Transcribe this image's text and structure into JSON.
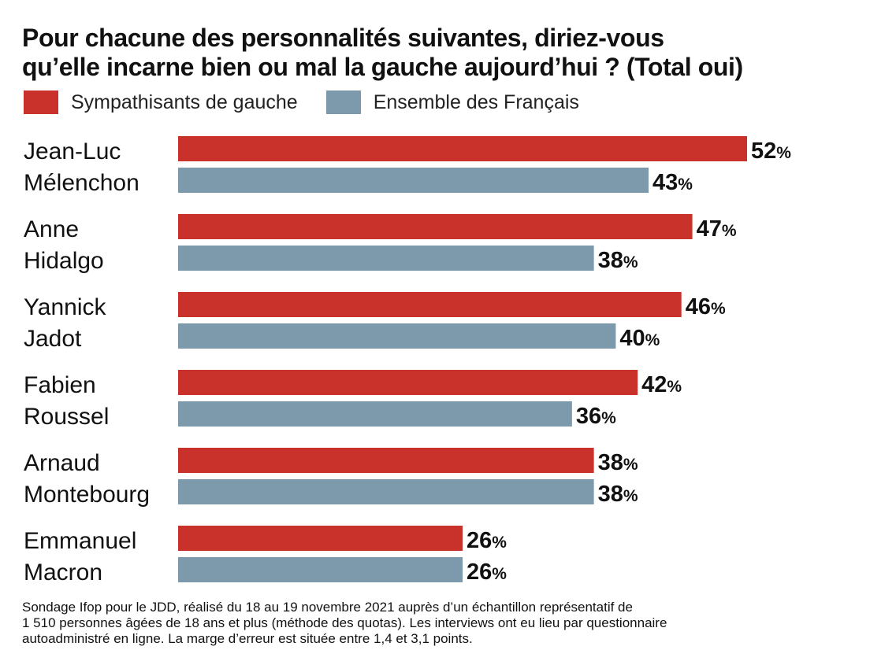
{
  "chart_data": {
    "type": "bar",
    "orientation": "horizontal",
    "title_lines": [
      "Pour chacune des personnalités suivantes, diriez-vous",
      "qu’elle incarne bien ou mal la gauche aujourd’hui ? (Total oui)"
    ],
    "categories": [
      [
        "Jean-Luc",
        "Mélenchon"
      ],
      [
        "Anne",
        "Hidalgo"
      ],
      [
        "Yannick",
        "Jadot"
      ],
      [
        "Fabien",
        "Roussel"
      ],
      [
        "Arnaud",
        "Montebourg"
      ],
      [
        "Emmanuel",
        "Macron"
      ]
    ],
    "series": [
      {
        "name": "Sympathisants de gauche",
        "color": "#c8322b",
        "values": [
          52,
          47,
          46,
          42,
          38,
          26
        ]
      },
      {
        "name": "Ensemble des Français",
        "color": "#7c9aac",
        "values": [
          43,
          38,
          40,
          36,
          38,
          26
        ]
      }
    ],
    "value_suffix": "%",
    "xlim": [
      0,
      52
    ],
    "legend_position": "top-left",
    "grid": false
  },
  "footnote_lines": [
    "Sondage Ifop pour le JDD, réalisé du 18 au 19 novembre 2021 auprès d’un échantillon représentatif de",
    "1 510 personnes âgées de 18 ans et plus (méthode des quotas).  Les interviews ont eu lieu par questionnaire",
    "autoadministré en ligne. La marge d’erreur est située entre 1,4 et 3,1 points."
  ]
}
